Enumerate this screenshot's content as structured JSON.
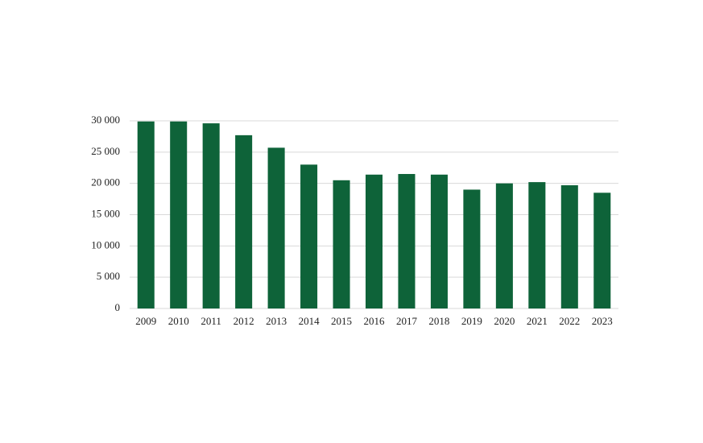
{
  "chart_data": {
    "type": "bar",
    "categories": [
      "2009",
      "2010",
      "2011",
      "2012",
      "2013",
      "2014",
      "2015",
      "2016",
      "2017",
      "2018",
      "2019",
      "2020",
      "2021",
      "2022",
      "2023"
    ],
    "values": [
      29900,
      29900,
      29600,
      27700,
      25700,
      23000,
      20500,
      21400,
      21500,
      21400,
      19000,
      20000,
      20200,
      19700,
      18500
    ],
    "color": "#0e6339",
    "ylim": [
      0,
      30000
    ],
    "yticks": [
      0,
      {
        "value": 5000,
        "label": "5 000"
      },
      {
        "value": 10000,
        "label": "10 000"
      },
      {
        "value": 15000,
        "label": "15 000"
      },
      {
        "value": 20000,
        "label": "20 000"
      },
      {
        "value": 25000,
        "label": "25 000"
      },
      {
        "value": 30000,
        "label": "30 000"
      }
    ],
    "grid": true
  }
}
